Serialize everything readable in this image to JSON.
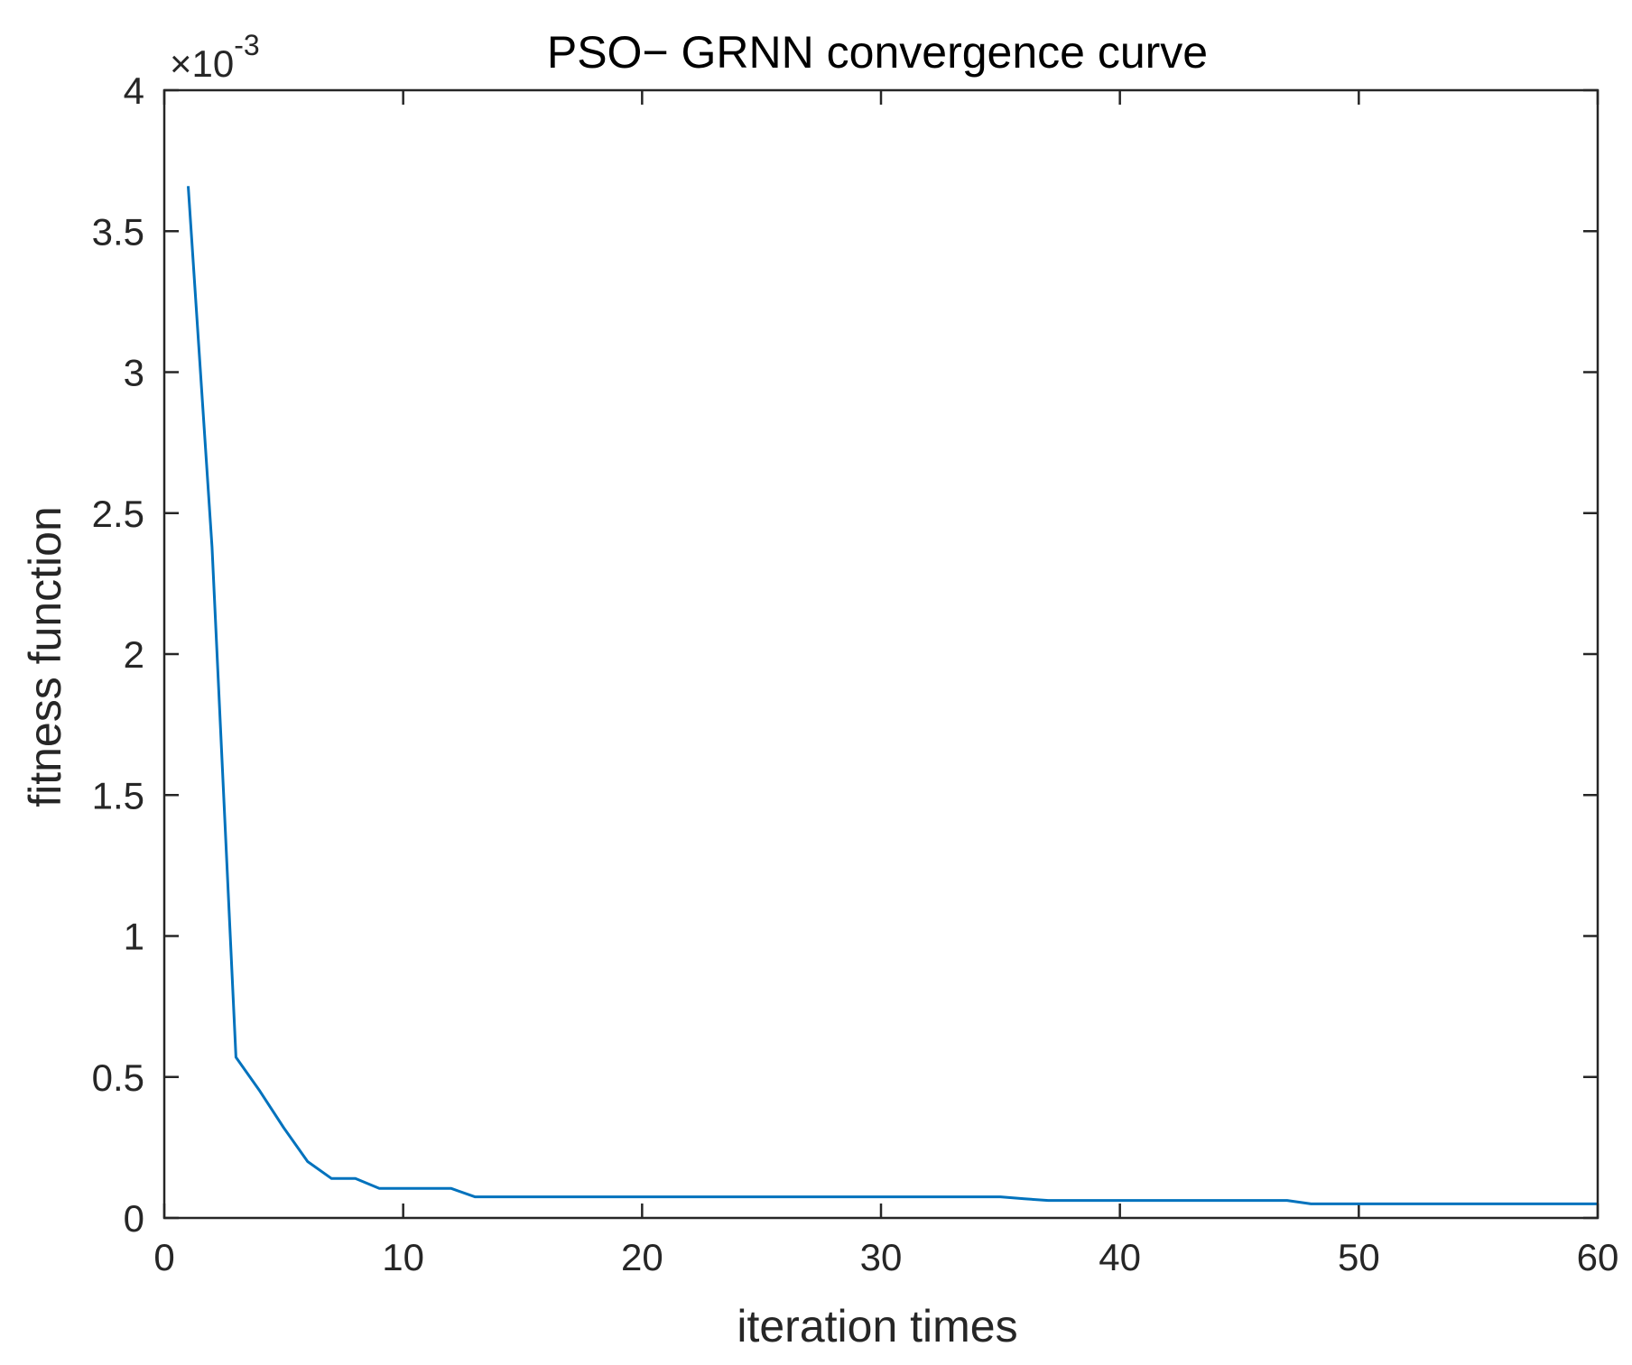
{
  "chart_data": {
    "type": "line",
    "title": "PSO− GRNN convergence curve",
    "xlabel": "iteration times",
    "ylabel": "fitness function",
    "y_multiplier": {
      "base": "×10",
      "exponent": "-3"
    },
    "xlim": [
      0,
      60
    ],
    "ylim": [
      0,
      4
    ],
    "xticks": [
      0,
      10,
      20,
      30,
      40,
      50,
      60
    ],
    "xtick_labels": [
      "0",
      "10",
      "20",
      "30",
      "40",
      "50",
      "60"
    ],
    "yticks": [
      0,
      0.5,
      1,
      1.5,
      2,
      2.5,
      3,
      3.5,
      4
    ],
    "ytick_labels": [
      "0",
      "0.5",
      "1",
      "1.5",
      "2",
      "2.5",
      "3",
      "3.5",
      "4"
    ],
    "grid": false,
    "box": true,
    "series": [
      {
        "color": "#0072BD",
        "x": [
          1,
          2,
          3,
          4,
          5,
          6,
          7,
          8,
          9,
          10,
          11,
          12,
          13,
          14,
          15,
          16,
          17,
          18,
          19,
          20,
          21,
          22,
          23,
          24,
          25,
          26,
          27,
          28,
          29,
          30,
          31,
          32,
          33,
          34,
          35,
          36,
          37,
          38,
          39,
          40,
          41,
          42,
          43,
          44,
          45,
          46,
          47,
          48,
          49,
          50,
          51,
          52,
          53,
          54,
          55,
          56,
          57,
          58,
          59,
          60
        ],
        "y": [
          3.66,
          2.38,
          0.57,
          0.45,
          0.32,
          0.2,
          0.14,
          0.14,
          0.105,
          0.105,
          0.105,
          0.105,
          0.075,
          0.075,
          0.075,
          0.075,
          0.075,
          0.075,
          0.075,
          0.075,
          0.075,
          0.075,
          0.075,
          0.075,
          0.075,
          0.075,
          0.075,
          0.075,
          0.075,
          0.075,
          0.075,
          0.075,
          0.075,
          0.075,
          0.075,
          0.068,
          0.062,
          0.062,
          0.062,
          0.062,
          0.062,
          0.062,
          0.062,
          0.062,
          0.062,
          0.062,
          0.062,
          0.05,
          0.05,
          0.05,
          0.05,
          0.05,
          0.05,
          0.05,
          0.05,
          0.05,
          0.05,
          0.05,
          0.05,
          0.05
        ]
      }
    ]
  }
}
